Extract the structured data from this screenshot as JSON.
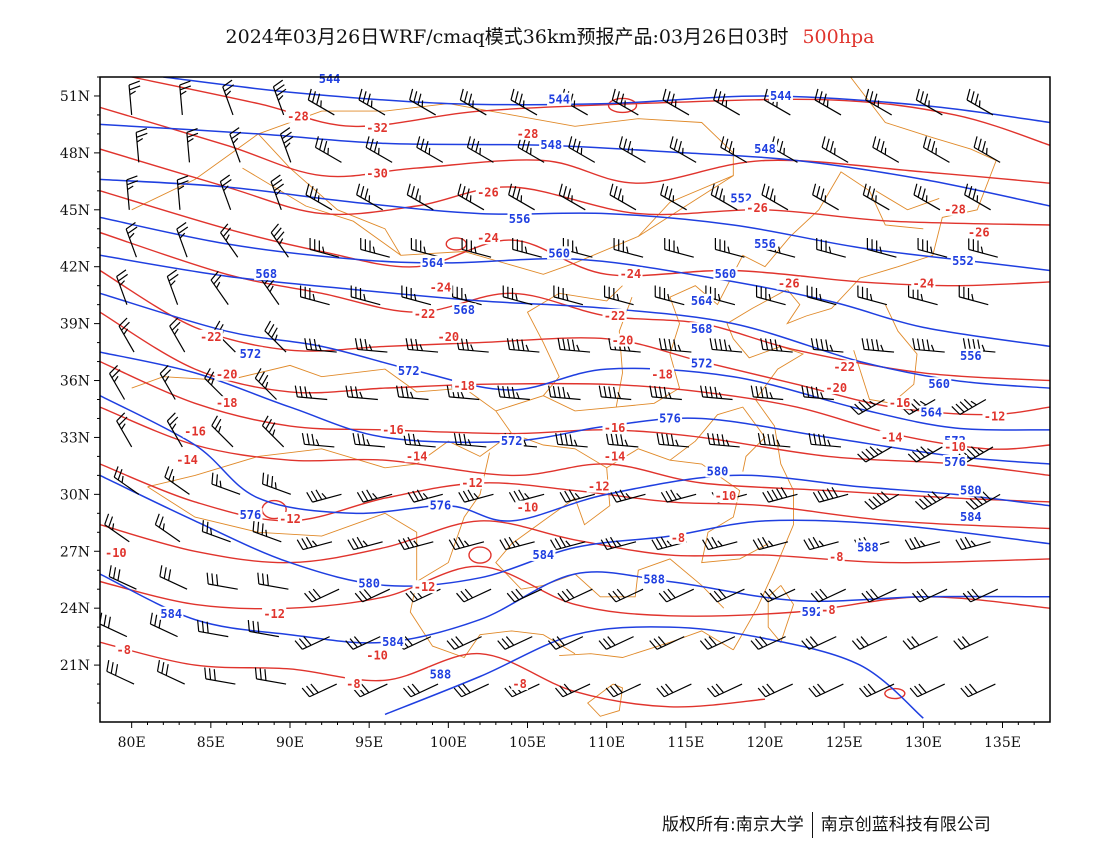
{
  "title": {
    "text": "2024年03月26日WRF/cmaq模式36km预报产品:03月26日03时",
    "level": "500hpa",
    "level_color": "#e0342d"
  },
  "credit": {
    "left": "版权所有:南京大学",
    "right": "南京创蓝科技有限公司"
  },
  "colors": {
    "height_contour": "#1f3fe0",
    "temperature_contour": "#e0342d",
    "coastline_border": "#e08a2a",
    "wind_barb": "#000000"
  },
  "chart_data": {
    "type": "map",
    "x_axis": {
      "ticks": [
        "80E",
        "85E",
        "90E",
        "95E",
        "100E",
        "105E",
        "110E",
        "115E",
        "120E",
        "125E",
        "130E",
        "135E"
      ],
      "range": [
        78,
        138
      ]
    },
    "y_axis": {
      "ticks": [
        "21N",
        "24N",
        "27N",
        "30N",
        "33N",
        "36N",
        "39N",
        "42N",
        "45N",
        "48N",
        "51N"
      ],
      "range": [
        18,
        52
      ]
    },
    "height_labels": [
      {
        "text": "544",
        "lon": 92.5,
        "lat": 51.8
      },
      {
        "text": "544",
        "lon": 107,
        "lat": 50.7
      },
      {
        "text": "544",
        "lon": 121,
        "lat": 50.9
      },
      {
        "text": "548",
        "lon": 106.5,
        "lat": 48.3
      },
      {
        "text": "548",
        "lon": 120,
        "lat": 48.1
      },
      {
        "text": "552",
        "lon": 118.5,
        "lat": 45.5
      },
      {
        "text": "552",
        "lon": 132.5,
        "lat": 42.2
      },
      {
        "text": "556",
        "lon": 104.5,
        "lat": 44.4
      },
      {
        "text": "556",
        "lon": 120,
        "lat": 43.1
      },
      {
        "text": "556",
        "lon": 133,
        "lat": 37.2
      },
      {
        "text": "560",
        "lon": 107,
        "lat": 42.6
      },
      {
        "text": "560",
        "lon": 117.5,
        "lat": 41.5
      },
      {
        "text": "560",
        "lon": 131,
        "lat": 35.7
      },
      {
        "text": "564",
        "lon": 99,
        "lat": 42.1
      },
      {
        "text": "564",
        "lon": 116,
        "lat": 40.1
      },
      {
        "text": "564",
        "lon": 130.5,
        "lat": 34.2
      },
      {
        "text": "568",
        "lon": 88.5,
        "lat": 41.5
      },
      {
        "text": "568",
        "lon": 101,
        "lat": 39.6
      },
      {
        "text": "568",
        "lon": 116,
        "lat": 38.6
      },
      {
        "text": "572",
        "lon": 87.5,
        "lat": 37.3
      },
      {
        "text": "572",
        "lon": 97.5,
        "lat": 36.4
      },
      {
        "text": "572",
        "lon": 104,
        "lat": 32.7
      },
      {
        "text": "572",
        "lon": 116,
        "lat": 36.8
      },
      {
        "text": "572",
        "lon": 132,
        "lat": 32.7
      },
      {
        "text": "576",
        "lon": 87.5,
        "lat": 28.8
      },
      {
        "text": "576",
        "lon": 114,
        "lat": 33.9
      },
      {
        "text": "576",
        "lon": 132,
        "lat": 31.6
      },
      {
        "text": "576",
        "lon": 99.5,
        "lat": 29.3
      },
      {
        "text": "580",
        "lon": 95,
        "lat": 25.2
      },
      {
        "text": "580",
        "lon": 117,
        "lat": 31.1
      },
      {
        "text": "580",
        "lon": 133,
        "lat": 30.1
      },
      {
        "text": "584",
        "lon": 82.5,
        "lat": 23.6
      },
      {
        "text": "584",
        "lon": 96.5,
        "lat": 22.1
      },
      {
        "text": "584",
        "lon": 106,
        "lat": 26.7
      },
      {
        "text": "584",
        "lon": 133,
        "lat": 28.7
      },
      {
        "text": "588",
        "lon": 99.5,
        "lat": 20.4
      },
      {
        "text": "588",
        "lon": 113,
        "lat": 25.4
      },
      {
        "text": "588",
        "lon": 126.5,
        "lat": 27.1
      },
      {
        "text": "592",
        "lon": 123,
        "lat": 23.7
      }
    ],
    "temperature_labels": [
      {
        "text": "-28",
        "lon": 90.5,
        "lat": 49.8
      },
      {
        "text": "-32",
        "lon": 95.5,
        "lat": 49.2
      },
      {
        "text": "-28",
        "lon": 105,
        "lat": 48.9
      },
      {
        "text": "-30",
        "lon": 95.5,
        "lat": 46.8
      },
      {
        "text": "-26",
        "lon": 102.5,
        "lat": 45.8
      },
      {
        "text": "-26",
        "lon": 119.5,
        "lat": 45.0
      },
      {
        "text": "-28",
        "lon": 132,
        "lat": 44.9
      },
      {
        "text": "-26",
        "lon": 133.5,
        "lat": 43.7
      },
      {
        "text": "-24",
        "lon": 102.5,
        "lat": 43.4
      },
      {
        "text": "-24",
        "lon": 111.5,
        "lat": 41.5
      },
      {
        "text": "-26",
        "lon": 121.5,
        "lat": 41.0
      },
      {
        "text": "-24",
        "lon": 130,
        "lat": 41.0
      },
      {
        "text": "-24",
        "lon": 99.5,
        "lat": 40.8
      },
      {
        "text": "-22",
        "lon": 98.5,
        "lat": 39.4
      },
      {
        "text": "-22",
        "lon": 110.5,
        "lat": 39.3
      },
      {
        "text": "-22",
        "lon": 85,
        "lat": 38.2
      },
      {
        "text": "-20",
        "lon": 100,
        "lat": 38.2
      },
      {
        "text": "-20",
        "lon": 111,
        "lat": 38.0
      },
      {
        "text": "-22",
        "lon": 125,
        "lat": 36.6
      },
      {
        "text": "-20",
        "lon": 86,
        "lat": 36.2
      },
      {
        "text": "-18",
        "lon": 101,
        "lat": 35.6
      },
      {
        "text": "-18",
        "lon": 113.5,
        "lat": 36.2
      },
      {
        "text": "-20",
        "lon": 124.5,
        "lat": 35.5
      },
      {
        "text": "-18",
        "lon": 86,
        "lat": 34.7
      },
      {
        "text": "-16",
        "lon": 128.5,
        "lat": 34.7
      },
      {
        "text": "-12",
        "lon": 134.5,
        "lat": 34.0
      },
      {
        "text": "-16",
        "lon": 84,
        "lat": 33.2
      },
      {
        "text": "-16",
        "lon": 96.5,
        "lat": 33.3
      },
      {
        "text": "-16",
        "lon": 110.5,
        "lat": 33.4
      },
      {
        "text": "-14",
        "lon": 128,
        "lat": 32.9
      },
      {
        "text": "-10",
        "lon": 132,
        "lat": 32.4
      },
      {
        "text": "-14",
        "lon": 83.5,
        "lat": 31.7
      },
      {
        "text": "-14",
        "lon": 98,
        "lat": 31.9
      },
      {
        "text": "-14",
        "lon": 110.5,
        "lat": 31.9
      },
      {
        "text": "-12",
        "lon": 101.5,
        "lat": 30.5
      },
      {
        "text": "-12",
        "lon": 109.5,
        "lat": 30.3
      },
      {
        "text": "-10",
        "lon": 117.5,
        "lat": 29.8
      },
      {
        "text": "-12",
        "lon": 90,
        "lat": 28.6
      },
      {
        "text": "-10",
        "lon": 105,
        "lat": 29.2
      },
      {
        "text": "-8",
        "lon": 114.5,
        "lat": 27.6
      },
      {
        "text": "-8",
        "lon": 124.5,
        "lat": 26.6
      },
      {
        "text": "-10",
        "lon": 79,
        "lat": 26.8
      },
      {
        "text": "-12",
        "lon": 98.5,
        "lat": 25.0
      },
      {
        "text": "-12",
        "lon": 89,
        "lat": 23.6
      },
      {
        "text": "-8",
        "lon": 124,
        "lat": 23.8
      },
      {
        "text": "-8",
        "lon": 79.5,
        "lat": 21.7
      },
      {
        "text": "-10",
        "lon": 95.5,
        "lat": 21.4
      },
      {
        "text": "-8",
        "lon": 94,
        "lat": 19.9
      },
      {
        "text": "-8",
        "lon": 104.5,
        "lat": 19.9
      }
    ]
  }
}
